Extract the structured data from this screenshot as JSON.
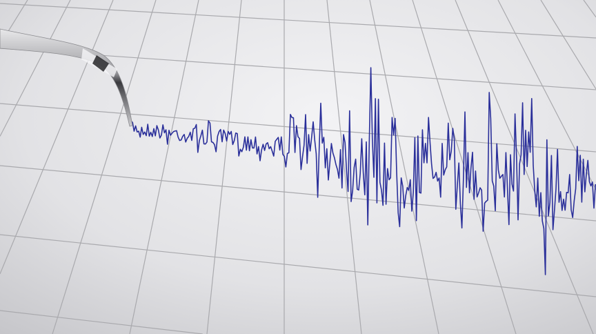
{
  "scene": {
    "subject": "seismograph",
    "colors": {
      "paper_light": "#f0f0f2",
      "paper_dark": "#c9c9cc",
      "grid": "#a9a9ad",
      "trace": "#2a2f9a",
      "needle": "#b8b8bc"
    }
  }
}
